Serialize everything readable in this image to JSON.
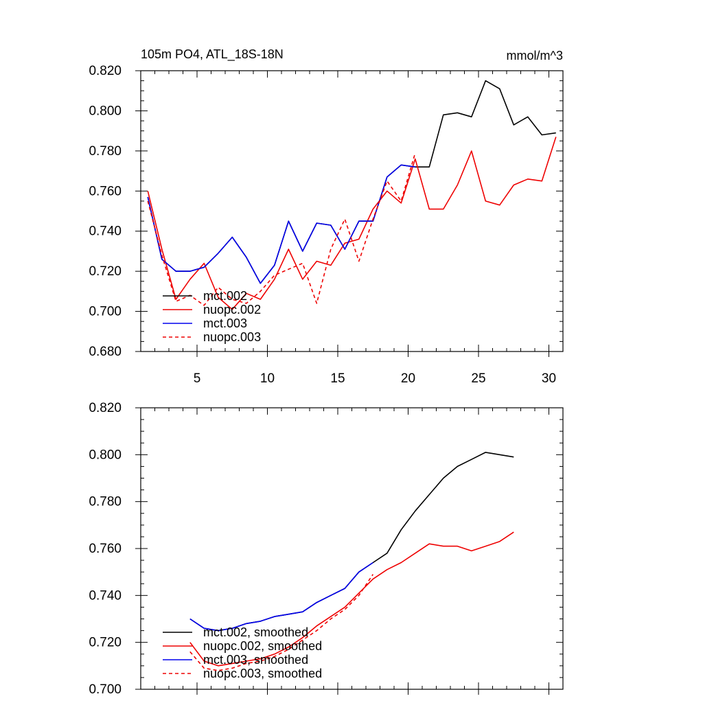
{
  "chart_data": [
    {
      "type": "line",
      "title": "105m PO4, ATL_18S-18N",
      "units": "mmol/m^3",
      "xlim": [
        1,
        31
      ],
      "ylim": [
        0.68,
        0.82
      ],
      "xticks": [
        {
          "v": 5,
          "label": "5"
        },
        {
          "v": 10,
          "label": "10"
        },
        {
          "v": 15,
          "label": "15"
        },
        {
          "v": 20,
          "label": "20"
        },
        {
          "v": 25,
          "label": "25"
        },
        {
          "v": 30,
          "label": "30"
        }
      ],
      "yticks": [
        {
          "v": 0.68,
          "label": "0.680"
        },
        {
          "v": 0.7,
          "label": "0.700"
        },
        {
          "v": 0.72,
          "label": "0.720"
        },
        {
          "v": 0.74,
          "label": "0.740"
        },
        {
          "v": 0.76,
          "label": "0.760"
        },
        {
          "v": 0.78,
          "label": "0.780"
        },
        {
          "v": 0.8,
          "label": "0.800"
        },
        {
          "v": 0.82,
          "label": "0.820"
        }
      ],
      "legend_position": "bottom-left",
      "series": [
        {
          "name": "mct.002",
          "color": "#000000",
          "dash": "solid",
          "x": [
            1.5,
            2.5,
            3.5,
            4.5,
            5.5,
            6.5,
            7.5,
            8.5,
            9.5,
            10.5,
            11.5,
            12.5,
            13.5,
            14.5,
            15.5,
            16.5,
            17.5,
            18.5,
            19.5,
            20.5,
            21.5,
            22.5,
            23.5,
            24.5,
            25.5,
            26.5,
            27.5,
            28.5,
            29.5,
            30.5
          ],
          "y": [
            0.757,
            0.726,
            0.72,
            0.72,
            0.722,
            0.729,
            0.737,
            0.727,
            0.714,
            0.723,
            0.745,
            0.73,
            0.744,
            0.743,
            0.731,
            0.745,
            0.745,
            0.767,
            0.773,
            0.772,
            0.772,
            0.798,
            0.799,
            0.797,
            0.815,
            0.811,
            0.793,
            0.797,
            0.788,
            0.789
          ]
        },
        {
          "name": "nuopc.002",
          "color": "#ee0000",
          "dash": "solid",
          "x": [
            1.5,
            2.5,
            3.5,
            4.5,
            5.5,
            6.5,
            7.5,
            8.5,
            9.5,
            10.5,
            11.5,
            12.5,
            13.5,
            14.5,
            15.5,
            16.5,
            17.5,
            18.5,
            19.5,
            20.5,
            21.5,
            22.5,
            23.5,
            24.5,
            25.5,
            26.5,
            27.5,
            28.5,
            29.5,
            30.5
          ],
          "y": [
            0.76,
            0.731,
            0.706,
            0.716,
            0.724,
            0.707,
            0.701,
            0.709,
            0.706,
            0.716,
            0.731,
            0.716,
            0.725,
            0.723,
            0.734,
            0.736,
            0.751,
            0.76,
            0.754,
            0.776,
            0.751,
            0.751,
            0.763,
            0.78,
            0.755,
            0.753,
            0.763,
            0.766,
            0.765,
            0.787
          ]
        },
        {
          "name": "mct.003",
          "color": "#0000ee",
          "dash": "solid",
          "x": [
            1.5,
            2.5,
            3.5,
            4.5,
            5.5,
            6.5,
            7.5,
            8.5,
            9.5,
            10.5,
            11.5,
            12.5,
            13.5,
            14.5,
            15.5,
            16.5,
            17.5,
            18.5,
            19.5,
            20.5
          ],
          "y": [
            0.757,
            0.726,
            0.72,
            0.72,
            0.722,
            0.729,
            0.737,
            0.727,
            0.714,
            0.723,
            0.745,
            0.73,
            0.744,
            0.743,
            0.731,
            0.745,
            0.745,
            0.767,
            0.773,
            0.772
          ]
        },
        {
          "name": "nuopc.003",
          "color": "#ee0000",
          "dash": "dashed",
          "x": [
            1.5,
            2.5,
            3.5,
            4.5,
            5.5,
            6.5,
            7.5,
            8.5,
            9.5,
            10.5,
            11.5,
            12.5,
            13.5,
            14.5,
            15.5,
            16.5,
            17.5,
            18.5,
            19.5,
            20.5
          ],
          "y": [
            0.755,
            0.728,
            0.705,
            0.708,
            0.703,
            0.712,
            0.706,
            0.704,
            0.71,
            0.718,
            0.721,
            0.724,
            0.704,
            0.731,
            0.746,
            0.725,
            0.746,
            0.765,
            0.755,
            0.779
          ]
        }
      ]
    },
    {
      "type": "line",
      "title": "",
      "xlim": [
        1,
        31
      ],
      "ylim": [
        0.7,
        0.82
      ],
      "xticks": [
        {
          "v": 5,
          "label": ""
        },
        {
          "v": 10,
          "label": ""
        },
        {
          "v": 15,
          "label": ""
        },
        {
          "v": 20,
          "label": ""
        },
        {
          "v": 25,
          "label": ""
        },
        {
          "v": 30,
          "label": ""
        }
      ],
      "yticks": [
        {
          "v": 0.7,
          "label": "0.700"
        },
        {
          "v": 0.72,
          "label": "0.720"
        },
        {
          "v": 0.74,
          "label": "0.740"
        },
        {
          "v": 0.76,
          "label": "0.760"
        },
        {
          "v": 0.78,
          "label": "0.780"
        },
        {
          "v": 0.8,
          "label": "0.800"
        },
        {
          "v": 0.82,
          "label": "0.820"
        }
      ],
      "legend_position": "bottom-left",
      "series": [
        {
          "name": "mct.002, smoothed",
          "color": "#000000",
          "dash": "solid",
          "x": [
            4.5,
            5.5,
            6.5,
            7.5,
            8.5,
            9.5,
            10.5,
            11.5,
            12.5,
            13.5,
            14.5,
            15.5,
            16.5,
            17.5,
            18.5,
            19.5,
            20.5,
            21.5,
            22.5,
            23.5,
            24.5,
            25.5,
            26.5,
            27.5
          ],
          "y": [
            0.73,
            0.726,
            0.725,
            0.726,
            0.728,
            0.729,
            0.731,
            0.732,
            0.733,
            0.737,
            0.74,
            0.743,
            0.75,
            0.754,
            0.758,
            0.768,
            0.776,
            0.783,
            0.79,
            0.795,
            0.798,
            0.801,
            0.8,
            0.799
          ]
        },
        {
          "name": "nuopc.002, smoothed",
          "color": "#ee0000",
          "dash": "solid",
          "x": [
            4.5,
            5.5,
            6.5,
            7.5,
            8.5,
            9.5,
            10.5,
            11.5,
            12.5,
            13.5,
            14.5,
            15.5,
            16.5,
            17.5,
            18.5,
            19.5,
            20.5,
            21.5,
            22.5,
            23.5,
            24.5,
            25.5,
            26.5,
            27.5
          ],
          "y": [
            0.72,
            0.712,
            0.71,
            0.711,
            0.712,
            0.713,
            0.715,
            0.718,
            0.722,
            0.727,
            0.731,
            0.735,
            0.741,
            0.747,
            0.751,
            0.754,
            0.758,
            0.762,
            0.761,
            0.761,
            0.759,
            0.761,
            0.763,
            0.767
          ]
        },
        {
          "name": "mct.003, smoothed",
          "color": "#0000ee",
          "dash": "solid",
          "x": [
            4.5,
            5.5,
            6.5,
            7.5,
            8.5,
            9.5,
            10.5,
            11.5,
            12.5,
            13.5,
            14.5,
            15.5,
            16.5,
            17.5
          ],
          "y": [
            0.73,
            0.726,
            0.725,
            0.726,
            0.728,
            0.729,
            0.731,
            0.732,
            0.733,
            0.737,
            0.74,
            0.743,
            0.75,
            0.754
          ]
        },
        {
          "name": "nuopc.003, smoothed",
          "color": "#ee0000",
          "dash": "dashed",
          "x": [
            4.5,
            5.5,
            6.5,
            7.5,
            8.5,
            9.5,
            10.5,
            11.5,
            12.5,
            13.5,
            14.5,
            15.5,
            16.5,
            17.5
          ],
          "y": [
            0.716,
            0.709,
            0.708,
            0.709,
            0.711,
            0.712,
            0.714,
            0.717,
            0.721,
            0.725,
            0.73,
            0.734,
            0.74,
            0.749
          ]
        }
      ]
    }
  ]
}
